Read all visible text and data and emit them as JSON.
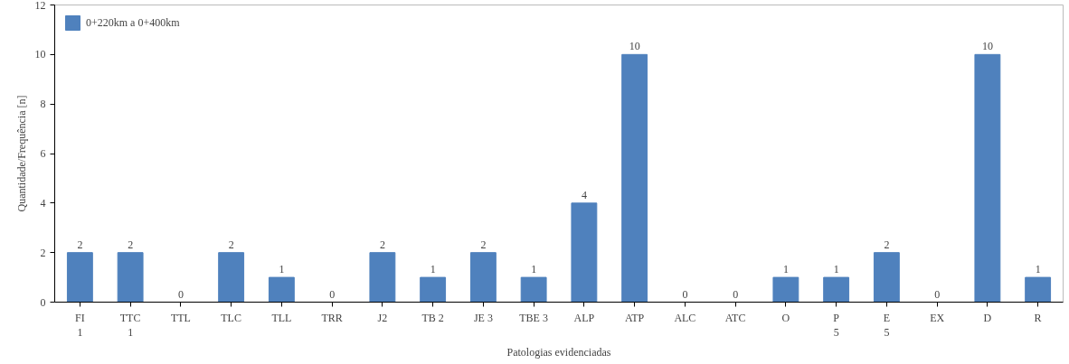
{
  "chart_data": {
    "type": "bar",
    "xlabel": "Patologias evidenciadas",
    "ylabel": "Quantidade/Frequência [n]",
    "categories": [
      "FI\n1",
      "TTC\n1",
      "TTL",
      "TLC",
      "TLL",
      "TRR",
      "J2",
      "TB 2",
      "JE 3",
      "TBE 3",
      "ALP",
      "ATP",
      "ALC",
      "ATC",
      "O",
      "P\n5",
      "E\n5",
      "EX",
      "D",
      "R"
    ],
    "series": [
      {
        "name": "0+220km a 0+400km",
        "color": "#4f81bd",
        "values": [
          2,
          2,
          0,
          2,
          1,
          0,
          2,
          1,
          2,
          1,
          4,
          10,
          0,
          0,
          1,
          1,
          2,
          0,
          10,
          1
        ]
      }
    ],
    "ylim": [
      0,
      12
    ],
    "yticks": [
      0,
      2,
      4,
      6,
      8,
      10,
      12
    ],
    "grid": false,
    "legend": "top left",
    "data_labels": true
  }
}
